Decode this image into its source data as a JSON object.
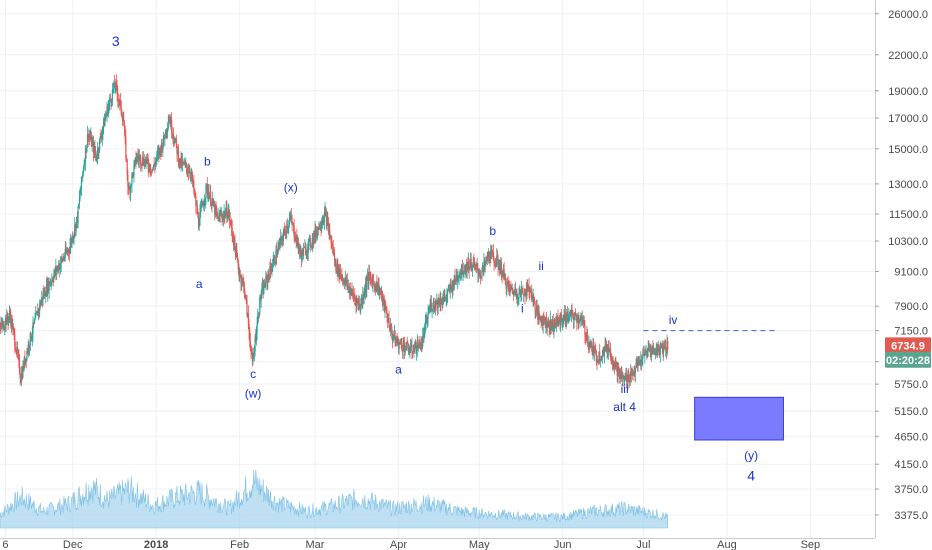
{
  "chart_data": {
    "type": "candlestick",
    "title": "",
    "xlabel": "",
    "ylabel": "",
    "y_scale": "log",
    "ylim": [
      3200,
      27500
    ],
    "y_ticks": [
      "26000.0",
      "22000.0",
      "19000.0",
      "17000.0",
      "15000.0",
      "13000.0",
      "11500.0",
      "10300.0",
      "9100.0",
      "7900.0",
      "7150.0",
      "6300.0",
      "5750.0",
      "5150.0",
      "4650.0",
      "4150.0",
      "3750.0",
      "3375.0"
    ],
    "x_ticks": [
      "6",
      "Dec",
      "2018",
      "Feb",
      "Mar",
      "Apr",
      "May",
      "Jun",
      "Jul",
      "Aug",
      "Sep"
    ],
    "x_tick_dates": [
      "2017-11-06",
      "2017-12-01",
      "2018-01-01",
      "2018-02-01",
      "2018-03-01",
      "2018-04-01",
      "2018-05-01",
      "2018-06-01",
      "2018-07-01",
      "2018-08-01",
      "2018-09-01"
    ],
    "xlim": [
      "2017-11-04",
      "2018-09-25"
    ],
    "grid": true,
    "price_path": [
      [
        "2017-11-04",
        7200
      ],
      [
        "2017-11-08",
        7600
      ],
      [
        "2017-11-12",
        5900
      ],
      [
        "2017-11-14",
        6500
      ],
      [
        "2017-11-20",
        8200
      ],
      [
        "2017-11-26",
        9300
      ],
      [
        "2017-11-30",
        10000
      ],
      [
        "2017-12-03",
        11300
      ],
      [
        "2017-12-07",
        16000
      ],
      [
        "2017-12-10",
        14500
      ],
      [
        "2017-12-14",
        17500
      ],
      [
        "2017-12-17",
        19500
      ],
      [
        "2017-12-20",
        17000
      ],
      [
        "2017-12-22",
        12500
      ],
      [
        "2017-12-25",
        14500
      ],
      [
        "2017-12-28",
        14300
      ],
      [
        "2017-12-31",
        13800
      ],
      [
        "2018-01-04",
        15500
      ],
      [
        "2018-01-06",
        17100
      ],
      [
        "2018-01-10",
        14200
      ],
      [
        "2018-01-14",
        13700
      ],
      [
        "2018-01-17",
        11100
      ],
      [
        "2018-01-20",
        12800
      ],
      [
        "2018-01-24",
        11300
      ],
      [
        "2018-01-28",
        11600
      ],
      [
        "2018-02-01",
        9100
      ],
      [
        "2018-02-03",
        8500
      ],
      [
        "2018-02-06",
        6200
      ],
      [
        "2018-02-09",
        8200
      ],
      [
        "2018-02-14",
        9500
      ],
      [
        "2018-02-20",
        11300
      ],
      [
        "2018-02-24",
        9700
      ],
      [
        "2018-02-28",
        10300
      ],
      [
        "2018-03-05",
        11500
      ],
      [
        "2018-03-09",
        9300
      ],
      [
        "2018-03-15",
        8300
      ],
      [
        "2018-03-18",
        7900
      ],
      [
        "2018-03-21",
        8900
      ],
      [
        "2018-03-25",
        8500
      ],
      [
        "2018-03-30",
        7000
      ],
      [
        "2018-04-01",
        6800
      ],
      [
        "2018-04-06",
        6600
      ],
      [
        "2018-04-10",
        6800
      ],
      [
        "2018-04-13",
        7900
      ],
      [
        "2018-04-19",
        8200
      ],
      [
        "2018-04-24",
        9100
      ],
      [
        "2018-04-28",
        9400
      ],
      [
        "2018-05-02",
        9000
      ],
      [
        "2018-05-05",
        9800
      ],
      [
        "2018-05-09",
        9300
      ],
      [
        "2018-05-12",
        8500
      ],
      [
        "2018-05-16",
        8300
      ],
      [
        "2018-05-20",
        8500
      ],
      [
        "2018-05-23",
        7600
      ],
      [
        "2018-05-28",
        7300
      ],
      [
        "2018-06-01",
        7500
      ],
      [
        "2018-06-04",
        7600
      ],
      [
        "2018-06-08",
        7500
      ],
      [
        "2018-06-11",
        6800
      ],
      [
        "2018-06-14",
        6400
      ],
      [
        "2018-06-18",
        6700
      ],
      [
        "2018-06-22",
        6000
      ],
      [
        "2018-06-24",
        5850
      ],
      [
        "2018-06-27",
        6000
      ],
      [
        "2018-06-30",
        6300
      ],
      [
        "2018-07-03",
        6600
      ],
      [
        "2018-07-06",
        6600
      ],
      [
        "2018-07-10",
        6734.9
      ]
    ],
    "volume_path": [
      [
        "2017-11-04",
        0.25
      ],
      [
        "2017-11-12",
        0.55
      ],
      [
        "2017-11-20",
        0.3
      ],
      [
        "2017-11-30",
        0.45
      ],
      [
        "2017-12-08",
        0.75
      ],
      [
        "2017-12-14",
        0.5
      ],
      [
        "2017-12-22",
        0.7
      ],
      [
        "2017-12-31",
        0.4
      ],
      [
        "2018-01-08",
        0.55
      ],
      [
        "2018-01-17",
        0.65
      ],
      [
        "2018-01-28",
        0.35
      ],
      [
        "2018-02-06",
        0.85
      ],
      [
        "2018-02-15",
        0.45
      ],
      [
        "2018-02-26",
        0.3
      ],
      [
        "2018-03-08",
        0.4
      ],
      [
        "2018-03-18",
        0.55
      ],
      [
        "2018-03-30",
        0.35
      ],
      [
        "2018-04-12",
        0.45
      ],
      [
        "2018-04-24",
        0.3
      ],
      [
        "2018-05-06",
        0.25
      ],
      [
        "2018-05-20",
        0.2
      ],
      [
        "2018-06-01",
        0.2
      ],
      [
        "2018-06-12",
        0.3
      ],
      [
        "2018-06-24",
        0.35
      ],
      [
        "2018-07-06",
        0.25
      ],
      [
        "2018-07-10",
        0.2
      ]
    ],
    "wave_labels": [
      {
        "text": "3",
        "date": "2017-12-17",
        "price": 22800,
        "size": 14
      },
      {
        "text": "b",
        "date": "2018-01-20",
        "price": 14000,
        "size": 12
      },
      {
        "text": "a",
        "date": "2018-01-17",
        "price": 8500,
        "size": 12
      },
      {
        "text": "(x)",
        "date": "2018-02-20",
        "price": 12600,
        "size": 12
      },
      {
        "text": "c",
        "date": "2018-02-06",
        "price": 5900,
        "size": 12
      },
      {
        "text": "(w)",
        "date": "2018-02-06",
        "price": 5450,
        "size": 12
      },
      {
        "text": "a",
        "date": "2018-04-01",
        "price": 6000,
        "size": 12
      },
      {
        "text": "b",
        "date": "2018-05-06",
        "price": 10550,
        "size": 12
      },
      {
        "text": "ii",
        "date": "2018-05-24",
        "price": 9150,
        "size": 12
      },
      {
        "text": "i",
        "date": "2018-05-17",
        "price": 7700,
        "size": 12
      },
      {
        "text": "iv",
        "date": "2018-07-12",
        "price": 7350,
        "size": 12
      },
      {
        "text": "iii",
        "date": "2018-06-24",
        "price": 5550,
        "size": 12
      },
      {
        "text": "alt 4",
        "date": "2018-06-24",
        "price": 5150,
        "size": 12
      },
      {
        "text": "(y)",
        "date": "2018-08-10",
        "price": 4230,
        "size": 12
      },
      {
        "text": "4",
        "date": "2018-08-10",
        "price": 3880,
        "size": 14
      }
    ],
    "target_box": {
      "date_start": "2018-07-20",
      "date_end": "2018-08-22",
      "price_top": 5450,
      "price_bottom": 4580,
      "color": "#7b7bff"
    },
    "resistance_line": {
      "price": 7150,
      "date_start": "2018-07-01",
      "date_end": "2018-08-20",
      "color": "#3f63d6"
    },
    "current_price": {
      "label": "6734.9",
      "price": 6734.9,
      "color": "#e05a4f"
    },
    "countdown": {
      "label": "02:20:28",
      "price": 6350,
      "color": "#5aa58d"
    },
    "colors": {
      "up": "#26a69a",
      "down": "#ef5350",
      "volume": "#a9d6ee",
      "wave": "#1a33c7",
      "grid": "#eef0f3"
    }
  }
}
